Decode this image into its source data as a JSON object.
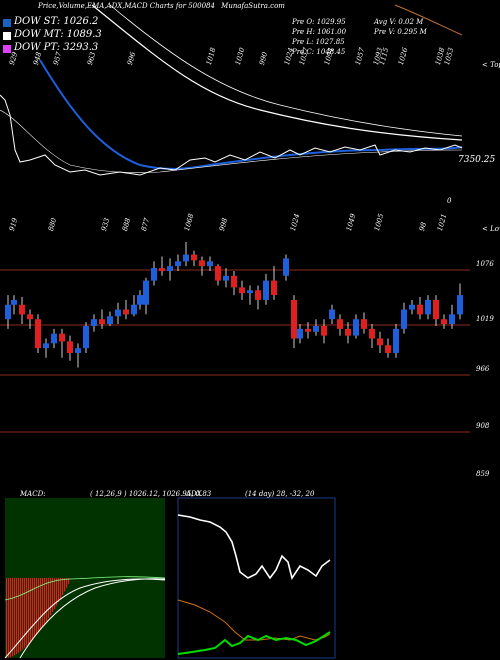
{
  "header": {
    "title": "Price,Volume,EMA,ADX,MACD Charts for 500084",
    "site": "MunafaSutra.com"
  },
  "legend": [
    {
      "label": "DOW ST: 1026.2",
      "color": "#1565c0"
    },
    {
      "label": "DOW MT: 1089.3",
      "color": "#ffffff"
    },
    {
      "label": "DOW PT: 3293.3",
      "color": "#e040fb"
    }
  ],
  "stats": {
    "prev_open": "Pre   O: 1029.95",
    "prev_high": "Pre   H: 1061.00",
    "prev_low": "Pre   L: 1027.85",
    "prev_close": "Pre   C: 1048.45",
    "avg_volume": "Avg V: 0.02  M",
    "prev_volume": "Pre   V: 0.295  M"
  },
  "labels": {
    "tops": "< Tops",
    "lows": "< Lows",
    "ema_value": "7350.25",
    "zero": "0",
    "macd_title": "MACD:",
    "macd_values": "( 12,26,9 ) 1026.12,  1026.95,  0.83",
    "adx_title": "ADX",
    "adx_values": "(14  day) 28,  -32,  20"
  },
  "top_labels": [
    {
      "text": "929",
      "x": 8
    },
    {
      "text": "948",
      "x": 32
    },
    {
      "text": "957",
      "x": 52
    },
    {
      "text": "963",
      "x": 86
    },
    {
      "text": "996",
      "x": 126
    },
    {
      "text": "1018",
      "x": 205
    },
    {
      "text": "1030",
      "x": 234
    },
    {
      "text": "990",
      "x": 258
    },
    {
      "text": "1024",
      "x": 283
    },
    {
      "text": "1037",
      "x": 298
    },
    {
      "text": "1094",
      "x": 323
    },
    {
      "text": "1057",
      "x": 354
    },
    {
      "text": "1093",
      "x": 372
    },
    {
      "text": "1115",
      "x": 378
    },
    {
      "text": "1026",
      "x": 397
    },
    {
      "text": "1038",
      "x": 434
    },
    {
      "text": "1053",
      "x": 443
    }
  ],
  "low_labels": [
    {
      "text": "919",
      "x": 8
    },
    {
      "text": "880",
      "x": 47
    },
    {
      "text": "933",
      "x": 100
    },
    {
      "text": "888",
      "x": 121
    },
    {
      "text": "877",
      "x": 140
    },
    {
      "text": "1068",
      "x": 183
    },
    {
      "text": "998",
      "x": 218
    },
    {
      "text": "1024",
      "x": 289
    },
    {
      "text": "1049",
      "x": 345
    },
    {
      "text": "1005",
      "x": 373
    },
    {
      "text": "98",
      "x": 418
    },
    {
      "text": "1021",
      "x": 436
    }
  ],
  "price_axis": [
    {
      "text": "1076",
      "y": 270
    },
    {
      "text": "1019",
      "y": 325
    },
    {
      "text": "966",
      "y": 375
    },
    {
      "text": "908",
      "y": 432
    },
    {
      "text": "859",
      "y": 480
    }
  ],
  "colors": {
    "up": "#1e5fdc",
    "down": "#e02020",
    "wick": "#ffffff",
    "grid": "#8b2a1a",
    "ema_fast": "#1e5fdc",
    "ema_mid": "#ffffff",
    "macd_bg": "#003300",
    "adx_line": "#ffffff",
    "adx_pos": "#00dd00",
    "adx_neg": "#d07010"
  }
}
